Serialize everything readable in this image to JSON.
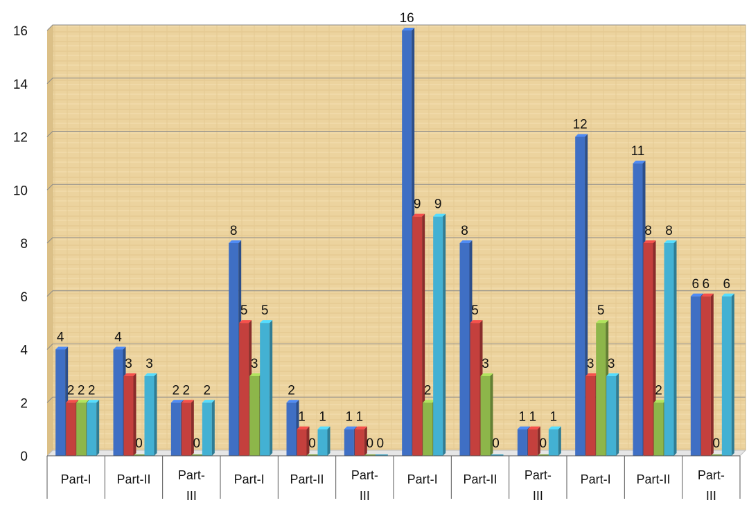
{
  "chart_data": {
    "type": "bar",
    "categories": [
      "Part-I",
      "Part-II",
      "Part-III",
      "Part-I",
      "Part-II",
      "Part-III",
      "Part-I",
      "Part-II",
      "Part-III",
      "Part-I",
      "Part-II",
      "Part-III"
    ],
    "series": [
      {
        "values": [
          4,
          4,
          2,
          8,
          2,
          1,
          16,
          8,
          1,
          12,
          11,
          6
        ]
      },
      {
        "values": [
          2,
          3,
          2,
          5,
          1,
          1,
          9,
          5,
          1,
          3,
          8,
          6
        ]
      },
      {
        "values": [
          2,
          0,
          0,
          3,
          0,
          0,
          2,
          3,
          0,
          5,
          2,
          0
        ]
      },
      {
        "values": [
          2,
          3,
          2,
          5,
          1,
          0,
          9,
          0,
          1,
          3,
          8,
          6
        ]
      }
    ],
    "ylim": [
      0,
      16
    ],
    "yticks": [
      0,
      2,
      4,
      6,
      8,
      10,
      12,
      14,
      16
    ],
    "grid": true,
    "legend": "none",
    "colors": [
      "#3f6fc4",
      "#c4403d",
      "#8db64a",
      "#43b1d3"
    ],
    "background": "papyrus"
  }
}
